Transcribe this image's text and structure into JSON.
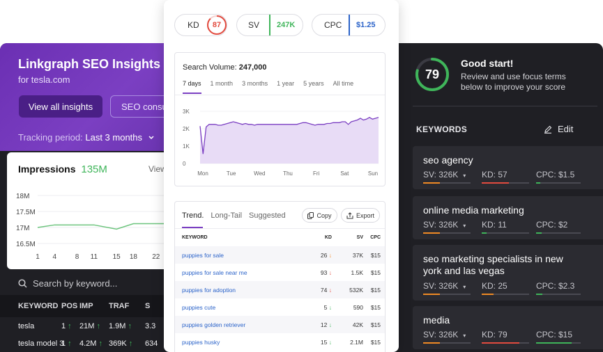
{
  "left": {
    "title": "Linkgraph SEO Insights",
    "subtitle": "for tesla.com",
    "view_all": "View all insights",
    "seo_consult": "SEO consul",
    "tracking_label": "Tracking period:",
    "tracking_value": "Last 3 months",
    "impressions_label": "Impressions",
    "impressions_value": "135M",
    "view_link": "View",
    "y_ticks": [
      "18M",
      "17.5M",
      "17M",
      "16.5M"
    ],
    "x_ticks": [
      "1",
      "4",
      "8",
      "11",
      "15",
      "18",
      "22"
    ],
    "search_placeholder": "Search by keyword...",
    "table": {
      "headers": [
        "KEYWORD",
        "POS",
        "IMP",
        "TRAF",
        "S"
      ],
      "rows": [
        {
          "keyword": "tesla",
          "pos": "1",
          "imp": "21M",
          "traf": "1.9M",
          "s": "3.3"
        },
        {
          "keyword": "tesla model 3",
          "pos": "1",
          "imp": "4.2M",
          "traf": "369K",
          "s": "634"
        }
      ]
    },
    "chart_data": {
      "type": "line",
      "x": [
        1,
        4,
        8,
        11,
        15,
        18,
        22,
        25
      ],
      "values": [
        17.0,
        17.08,
        17.08,
        17.08,
        16.95,
        17.12,
        17.12,
        17.12
      ],
      "ylim": [
        16.5,
        18
      ]
    }
  },
  "center": {
    "pills": [
      {
        "label": "KD",
        "value": "87",
        "color": "#e24b3f"
      },
      {
        "label": "SV",
        "value": "247K",
        "color": "#3fb55a"
      },
      {
        "label": "CPC",
        "value": "$1.25",
        "color": "#2b63c9"
      }
    ],
    "search_volume_label": "Search Volume:",
    "search_volume_value": "247,000",
    "range_tabs": [
      "7 days",
      "1 month",
      "3 months",
      "1 year",
      "5 years",
      "All time"
    ],
    "y_ticks": [
      "3K",
      "2K",
      "1K",
      "0"
    ],
    "x_ticks": [
      "Mon",
      "Tue",
      "Wed",
      "Thu",
      "Fri",
      "Sat",
      "Sun"
    ],
    "table_tabs": [
      "Trend.",
      "Long-Tail",
      "Suggested"
    ],
    "copy_label": "Copy",
    "export_label": "Export",
    "headers": [
      "KEYWORD",
      "KD",
      "SV",
      "CPC"
    ],
    "rows": [
      {
        "keyword": "puppies for sale",
        "kd": "26",
        "trend": "down",
        "trend_color": "orange",
        "sv": "37K",
        "cpc": "$15"
      },
      {
        "keyword": "puppies for sale near me",
        "kd": "93",
        "trend": "down",
        "trend_color": "red",
        "sv": "1.5K",
        "cpc": "$15"
      },
      {
        "keyword": "puppies for adoption",
        "kd": "74",
        "trend": "down",
        "trend_color": "red",
        "sv": "532K",
        "cpc": "$15"
      },
      {
        "keyword": "puppies cute",
        "kd": "5",
        "trend": "down",
        "trend_color": "green",
        "sv": "590",
        "cpc": "$15"
      },
      {
        "keyword": "puppies golden retriever",
        "kd": "12",
        "trend": "down",
        "trend_color": "green",
        "sv": "42K",
        "cpc": "$15"
      },
      {
        "keyword": "puppies husky",
        "kd": "15",
        "trend": "down",
        "trend_color": "green",
        "sv": "2.1M",
        "cpc": "$15"
      }
    ],
    "chart_data": {
      "type": "area",
      "values": [
        2150,
        550,
        2100,
        2250,
        2250,
        2250,
        2200,
        2200,
        2250,
        2300,
        2350,
        2400,
        2350,
        2300,
        2250,
        2300,
        2250,
        2250,
        2200,
        2250,
        2250,
        2250,
        2250,
        2250,
        2250,
        2250,
        2250,
        2250,
        2250,
        2250,
        2250,
        2250,
        2250,
        2300,
        2350,
        2350,
        2300,
        2250,
        2200,
        2250,
        2250,
        2250,
        2300,
        2300,
        2350,
        2350,
        2350,
        2400,
        2400,
        2250,
        2400,
        2450,
        2500,
        2600,
        2500,
        2550,
        2650,
        2550,
        2600,
        2650
      ],
      "ylim": [
        0,
        3000
      ]
    }
  },
  "right": {
    "score": "79",
    "score_fraction": 0.79,
    "heading": "Good start!",
    "description": "Review and use focus terms below to improve your score",
    "keywords_label": "KEYWORDS",
    "edit_label": "Edit",
    "cards": [
      {
        "title": "seo agency",
        "sv": "SV: 326K",
        "kd": "KD: 57",
        "cpc": "CPC: $1.5",
        "sv_frac": 0.35,
        "kd_frac": 0.57,
        "cpc_frac": 0.1,
        "kd_color": "#e24b3f"
      },
      {
        "title": "online media marketing",
        "sv": "SV: 326K",
        "kd": "KD: 11",
        "cpc": "CPC: $2",
        "sv_frac": 0.35,
        "kd_frac": 0.11,
        "cpc_frac": 0.12,
        "kd_color": "#3fb55a"
      },
      {
        "title": "seo marketing specialists in new york and las vegas",
        "sv": "SV: 326K",
        "kd": "KD: 25",
        "cpc": "CPC: $2.3",
        "sv_frac": 0.35,
        "kd_frac": 0.25,
        "cpc_frac": 0.14,
        "kd_color": "#f08a24"
      },
      {
        "title": "media",
        "sv": "SV: 326K",
        "kd": "KD: 79",
        "cpc": "CPC: $15",
        "sv_frac": 0.35,
        "kd_frac": 0.79,
        "cpc_frac": 0.8,
        "kd_color": "#e24b3f"
      }
    ]
  },
  "colors": {
    "purple": "#7b3fc2",
    "green": "#3fb55a",
    "red": "#e24b3f",
    "orange": "#f08a24",
    "blue": "#2b63c9",
    "dark_bg": "#1f1f24"
  }
}
